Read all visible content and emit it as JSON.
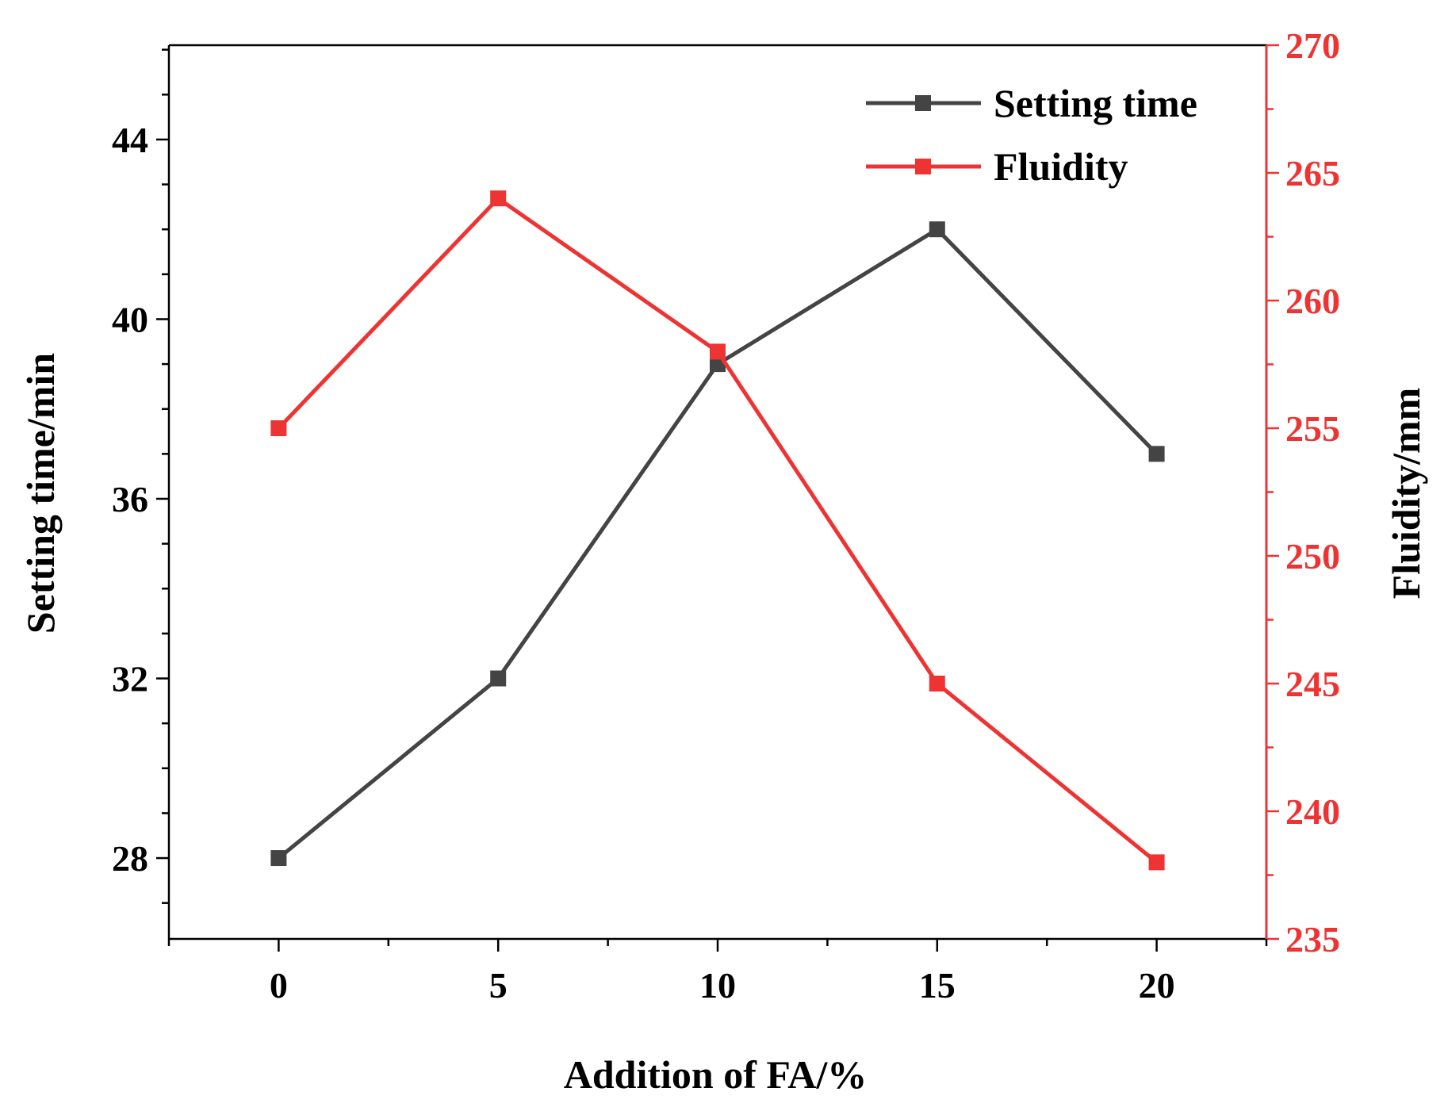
{
  "chart_data": {
    "type": "line",
    "x": [
      0,
      5,
      10,
      15,
      20
    ],
    "xlabel": "Addition of FA/%",
    "xlim": [
      -2.5,
      22.5
    ],
    "x_ticks": [
      "0",
      "5",
      "10",
      "15",
      "20"
    ],
    "y_left": {
      "label": "Setting time/min",
      "lim": [
        26.2,
        46.1
      ],
      "ticks": [
        "28",
        "32",
        "36",
        "40",
        "44"
      ],
      "color": "#000000"
    },
    "y_right": {
      "label": "Fluidity/mm",
      "lim": [
        235,
        270
      ],
      "ticks": [
        "235",
        "240",
        "245",
        "250",
        "255",
        "260",
        "265",
        "270"
      ],
      "color": "#ee3333"
    },
    "series": [
      {
        "name": "Setting time",
        "axis": "left",
        "color": "#444444",
        "values": [
          28,
          32,
          39,
          42,
          37
        ]
      },
      {
        "name": "Fluidity",
        "axis": "right",
        "color": "#ee3333",
        "values": [
          255,
          264,
          258,
          245,
          238
        ]
      }
    ],
    "legend_position": "top-right",
    "grid": false
  }
}
